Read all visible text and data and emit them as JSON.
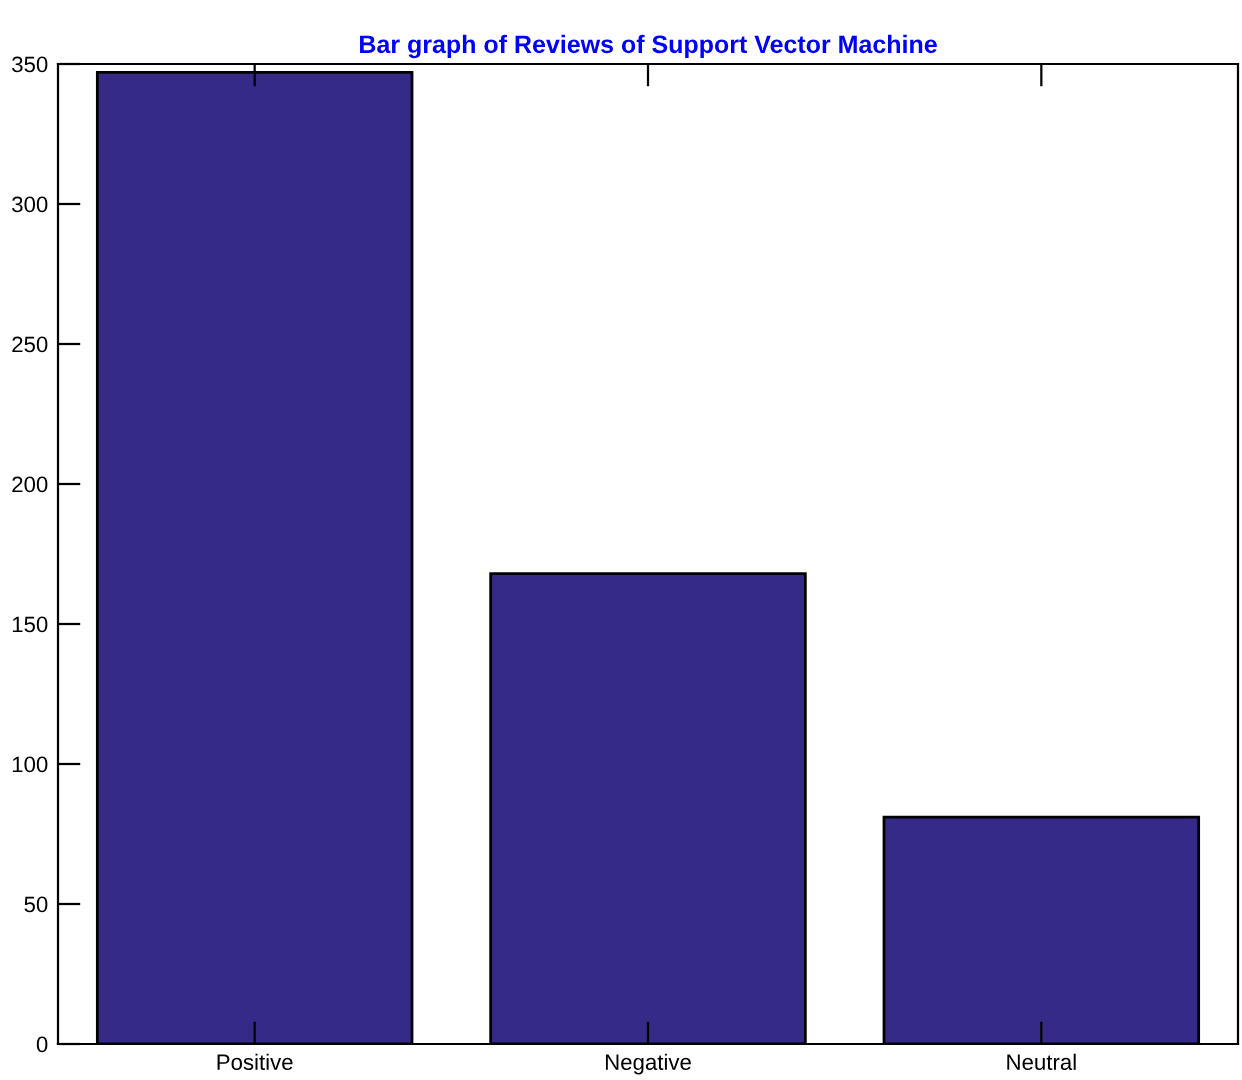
{
  "chart_data": {
    "type": "bar",
    "title": "Bar graph of Reviews of Support Vector Machine",
    "categories": [
      "Positive",
      "Negative",
      "Neutral"
    ],
    "values": [
      347,
      168,
      81
    ],
    "color": "#352a87",
    "ylim": [
      0,
      350
    ],
    "yticks": [
      0,
      50,
      100,
      150,
      200,
      250,
      300,
      350
    ],
    "grid": false
  }
}
